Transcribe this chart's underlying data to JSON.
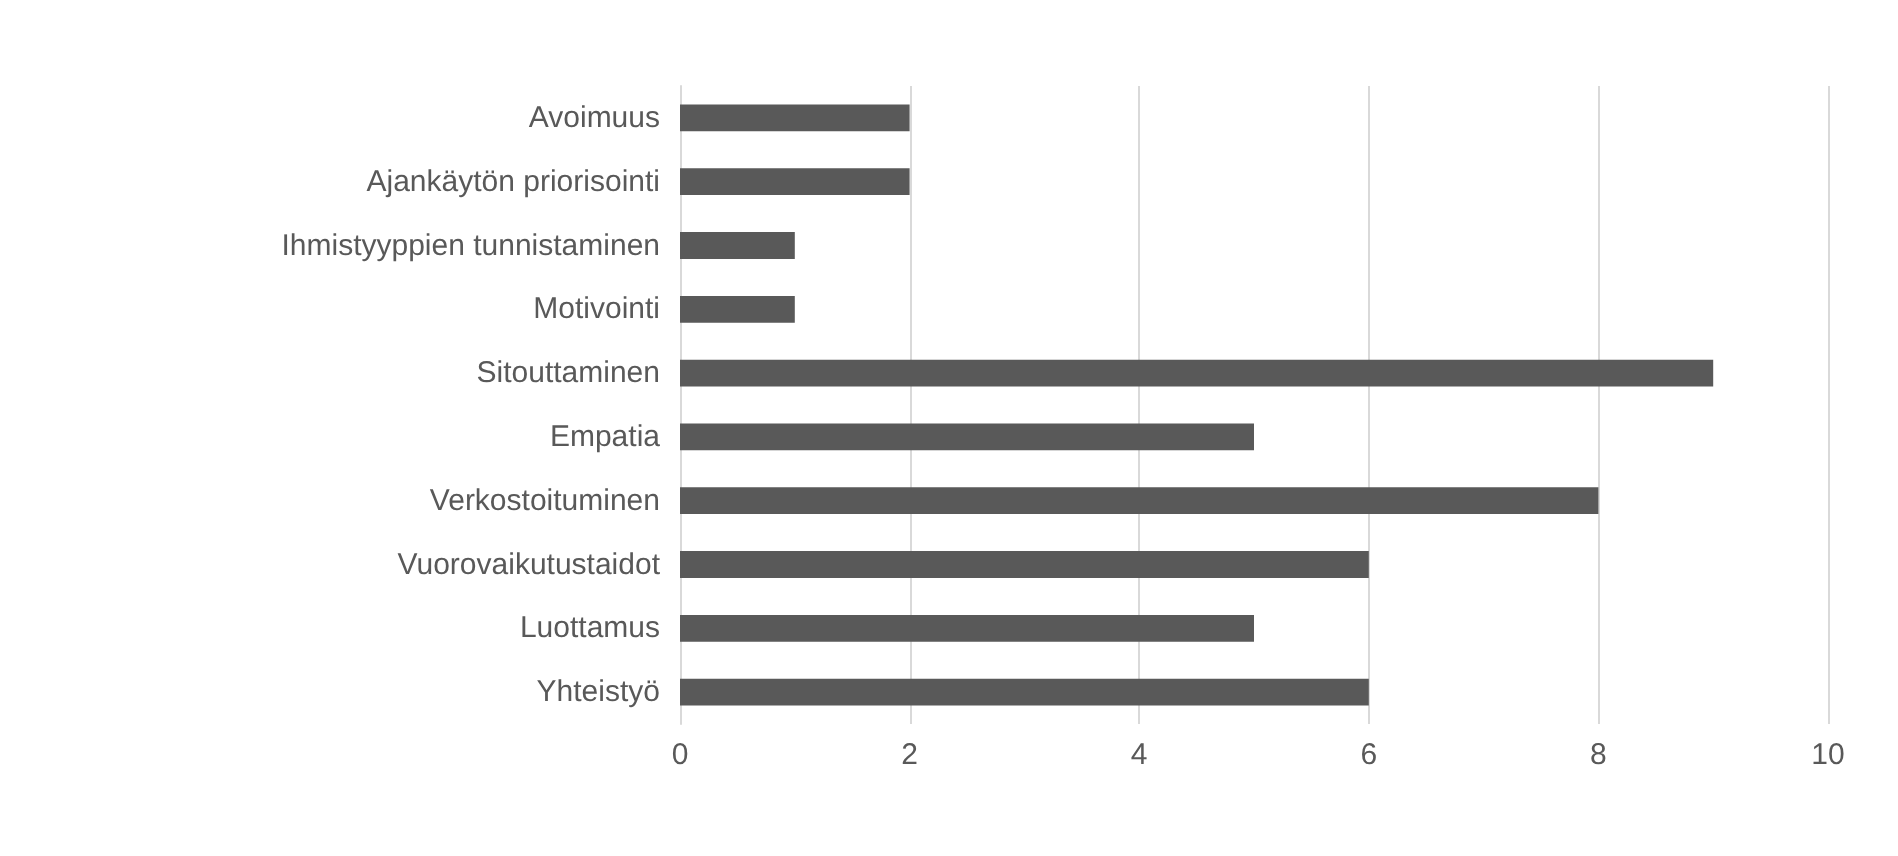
{
  "chart_data": {
    "type": "bar",
    "orientation": "horizontal",
    "categories": [
      "Avoimuus",
      "Ajankäytön priorisointi",
      "Ihmistyyppien tunnistaminen",
      "Motivointi",
      "Sitouttaminen",
      "Empatia",
      "Verkostoituminen",
      "Vuorovaikutustaidot",
      "Luottamus",
      "Yhteistyö"
    ],
    "values": [
      2,
      2,
      1,
      1,
      9,
      5,
      8,
      6,
      5,
      6
    ],
    "color": "#595959",
    "xlim": [
      0,
      10
    ],
    "xticks": [
      0,
      2,
      4,
      6,
      8,
      10
    ],
    "grid": "x"
  }
}
